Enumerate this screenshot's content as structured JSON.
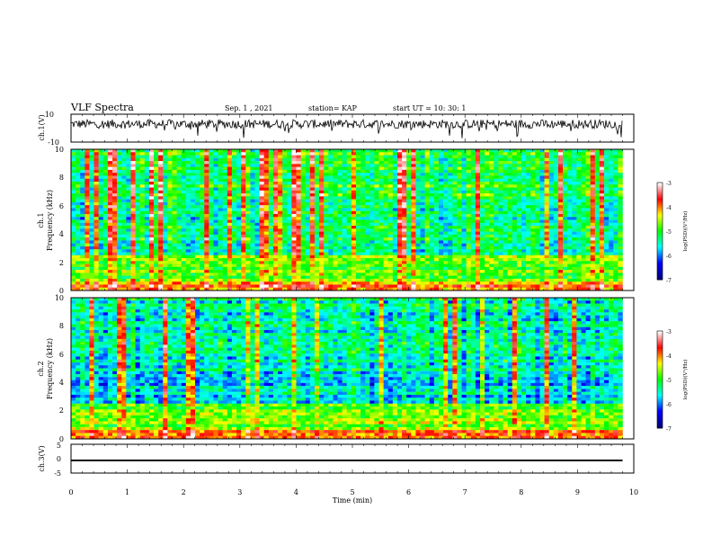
{
  "header": {
    "title": "VLF Spectra",
    "date": "Sep. 1 , 2021",
    "station": "station= KAP",
    "start": "start UT = 10: 30: 1"
  },
  "chart_data": [
    {
      "type": "line",
      "name": "ch1-waveform",
      "ylabel": "ch.1(V)",
      "ylim": [
        -10,
        10
      ],
      "yticks": [
        "10",
        "-10"
      ],
      "baseline": 3,
      "amplitude": 4
    },
    {
      "type": "heatmap",
      "name": "ch1-spectrogram",
      "ylabel_line1": "ch.1",
      "ylabel_line2": "Frequency (kHz)",
      "ylim": [
        0,
        10
      ],
      "yticks": [
        "0",
        "2",
        "4",
        "6",
        "8",
        "10"
      ],
      "colorbar_label": "log(PSD)(V²/Hz)",
      "colorbar_ticks": [
        "-3",
        "-4",
        "-5",
        "-6",
        "-7"
      ],
      "colorbar_range": [
        -7,
        -3
      ],
      "colormap": [
        "#00007f",
        "#0000ff",
        "#00ffff",
        "#00ff00",
        "#ffff00",
        "#ff0000",
        "#ffffff"
      ]
    },
    {
      "type": "heatmap",
      "name": "ch2-spectrogram",
      "ylabel_line1": "ch.2",
      "ylabel_line2": "Frequency (kHz)",
      "ylim": [
        0,
        10
      ],
      "yticks": [
        "0",
        "2",
        "4",
        "6",
        "8",
        "10"
      ],
      "colorbar_label": "log(PSD)(V²/Hz)",
      "colorbar_ticks": [
        "-3",
        "-4",
        "-5",
        "-6",
        "-7"
      ],
      "colorbar_range": [
        -7,
        -3
      ],
      "colormap": [
        "#00007f",
        "#0000ff",
        "#00ffff",
        "#00ff00",
        "#ffff00",
        "#ff0000",
        "#ffffff"
      ]
    },
    {
      "type": "line",
      "name": "ch3-waveform",
      "ylabel": "ch.3(V)",
      "ylim": [
        -5,
        5
      ],
      "yticks": [
        "5",
        "0",
        "-5"
      ],
      "baseline": -0.6,
      "amplitude": 0.3
    }
  ],
  "xaxis": {
    "label": "Time (min)",
    "xlim": [
      0,
      10
    ],
    "ticks": [
      "0",
      "1",
      "2",
      "3",
      "4",
      "5",
      "6",
      "7",
      "8",
      "9",
      "10"
    ],
    "data_end": 9.8
  }
}
